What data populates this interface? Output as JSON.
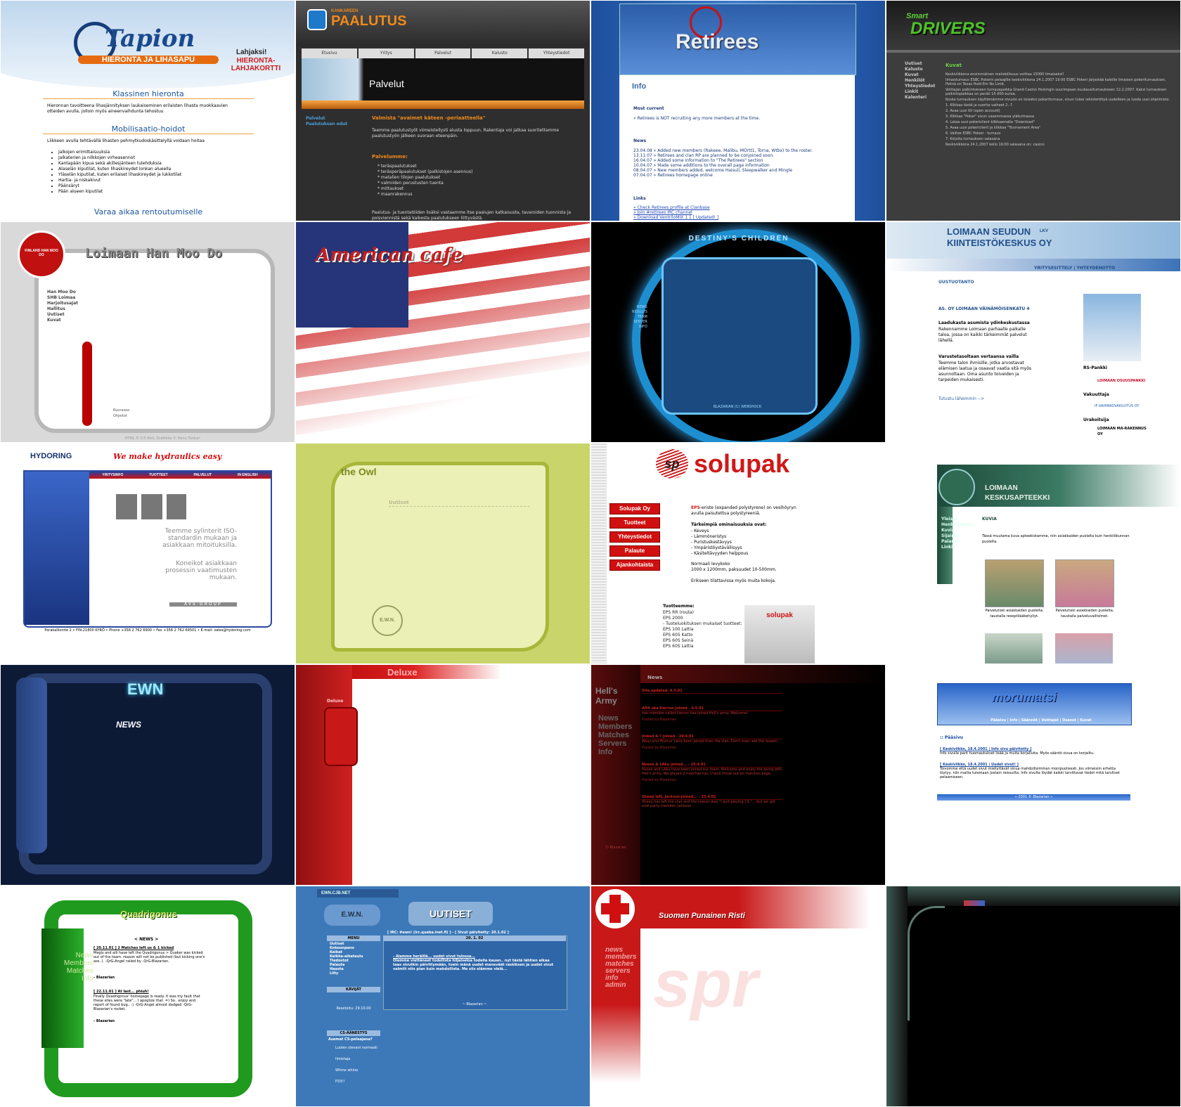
{
  "tiles": [
    {
      "logo": "Tapion",
      "tagline": "HIERONTA JA LIHASAPU",
      "gift": "Lahjaksi!",
      "gift_card": "HIERONTA-LAHJAKORTTI",
      "heading1": "Klassinen hieronta",
      "text1": "Hieronnan tavoitteena lihasjännityksen laukaiseminen erilaisten lihasta muokkaavien otteiden avulla, jolloin myös aineenvaihdunta tehostuu",
      "heading2": "Mobilisaatio-hoidot",
      "text2": "Liikkeen avulla tehtävällä lihasten pehmytkudoskäsittelyllä voidaan hoitaa",
      "items": [
        "Jalkojen erimittaisuuksia",
        "Jalkaterien ja nilkkojen virheasennot",
        "Kantapään kipua sekä akillesjänteen tulehduksia",
        "Alaselän kiputilat, kuten lihaskireydet lonkan alueella",
        "Yläselän kiputilat, kuten erilaiset lihaskireydet ja lukkotilat",
        "Hartia- ja niskakivut",
        "Päänsäryt",
        "Pään alueen kiputilat"
      ],
      "heading3": "Varaa aikaa rentoutumiselle"
    },
    {
      "logo_small": "KANKAREEN",
      "logo": "PAALUTUS",
      "nav": [
        "Etusivu",
        "Yritys",
        "Palvelut",
        "Kalusto",
        "Yhteystiedot"
      ],
      "banner": "Palvelut",
      "side": [
        "Palvelut",
        "Paalutuksen edut"
      ],
      "heading": "Valmista \"avaimet käteen -periaatteella\"",
      "text1": "Teemme paalutustyöt viimeistellysti alusta loppuun. Rakentaja voi jatkaa suoritettamme paalutustyön jälkeen suoraan eteenpäin.",
      "heading2": "Palvelumme:",
      "items": [
        "* teräspaalutukset",
        "* teräsperäpaalutukset (palkistojen asennus)",
        "* matalien tilojen paalutukset",
        "* valmiiden perustusten tuenta",
        "* mittaukset",
        "* maanrakennus"
      ],
      "text2": "Paalutus- ja tuentatöiden lisäksi vastaamme itse paalujen katkaisusta, tavaroiden tuonnista ja poisviennistä sekä kaikesta paalutukseen liittyvästä."
    },
    {
      "logo": "Retirees",
      "heading": "Info",
      "current_title": "Most current",
      "current": "» Retirees is NOT recruiting any more members at the time.",
      "news_title": "News",
      "news": [
        "23.04.08 » Added new members (Rakeee, Malibu, MOrtt1, Torna, Wtbx) to the roster.",
        "13.11.07 » Retirees and clan RP are planned to be conjoined soon.",
        "16.04.07 » Added some information to \"The Retirees\" section",
        "10.04.07 » Made some additions to the overall page information",
        "08.04.07 » New members added, welcome Haisuli, Sleepwalker and Mingle",
        "07.04.07 » Retirees homepage online"
      ],
      "links_title": "Links",
      "links": [
        "» Check Retirees profile at Clanbase",
        "» Join #retirees IRC channel",
        "» Download VentriloMIX 1.1 [ Updated! ]"
      ]
    },
    {
      "logo_small": "Smart",
      "logo": "DRIVERS",
      "nav": [
        "Uutiset",
        "Kalusto",
        "Kuvat",
        "Henkilöt",
        "Yhteystiedot",
        "Linkit",
        "Kalenteri"
      ],
      "heading": "Kuvat",
      "paragraphs": [
        "Keskiviikkona ensimmäinen mahdollisuus voittaa 15000 ilmaiseksi!",
        "Ilmaisturnaus ESBC Pokerin pelaajille keskiviikkona 24.1.2007 19:00 ESBC Pokeri järjestää kaikille ilmaisen pokeriturnauksen. Pelinä on Texas Hold Em No Limit.",
        "Voittajan palkintoineen turnauspaikka Grand Casino Helsingin suurimpaan kuukausiturnaukseen 12.2.2007. Kaksi turnauksen palkintopaikkaa on peräti 15 000 euroa.",
        "Koska turnauksen käyttämämme sivusto on toiseksi pokeriturnaus, sinun tulee rekisteröityä uudelleen ja luoda uusi ohjelmisto.",
        "1. Klikkaa tästä ja suorita vaiheet 2.-7.",
        "2. Avaa uusi tili (open account)",
        "3. Klikkaa \"Poker\" sivun vasemmassa yläkulmassa",
        "4. Lataa uusi pokericlient klikkaamalla \"Download\"",
        "5. Avaa uusi pokericlient ja klikkaa \"Tournament Area\"",
        "6. Valitse ESBC Pokeri - turnaus",
        "7. Kirjoita turnauksen salasana",
        "Keskiviikkona 24.1.2007 kello 19:00 salasana on: casino"
      ]
    },
    {
      "title": "Loimaan Han Moo Do",
      "emblem": "FINLAND HAN MOO DO",
      "nav": [
        "Han Moo Do",
        "SHB Loimaa",
        "Harjoitusajat",
        "Hallitus",
        "Uutiset",
        "Kuvat"
      ],
      "credits": [
        "Ruorasoo",
        "Ohjeitot"
      ],
      "footer": "HTML © V-P Ahti, Grafiikka © Hanu Tunturi"
    },
    {
      "title": "American cafe"
    },
    {
      "title": "DESTINY'S CHILDREN",
      "nav": [
        "NEWS",
        "RESULTS",
        "TEAM",
        "SERVER",
        "INFO"
      ],
      "footer": "BLAZARIAN (C) WEBSHOCK"
    },
    {
      "logo1": "LOIMAAN SEUDUN",
      "logo_lkv": "LKV",
      "logo2": "KIINTEISTÖKESKUS OY",
      "nav": "YRITYSESITTELY | YHTEYDENOTTO",
      "section": "UUSTUOTANTO",
      "heading": "AS. OY LOIMAAN VÄINÄMÖISENKATU 4",
      "sub1": "Laadukasta asumista ydinkeskustassa",
      "text1": "Rakennamme Loimaan parhaalle paikalle taloa, jossa on kaikki tärkeimmät palvelut lähellä.",
      "sub2": "Varustetasoltaan vertaansa vailla",
      "text2": "Teemme talon ihmisille, jotka arvostavat elämisen laatua ja osaavat vaatia sitä myös asunnoltaan. Oma asunto toiveiden ja tarpeiden mukaisesti.",
      "more": "Tutustu lähemmin -->",
      "bank_title": "RS-Pankki",
      "bank": "LOIMAAN OSUUSPANKKI",
      "insurer_title": "Vakuuttaja",
      "insurer": "IF-VAHINKOVAKUUTUS OY",
      "builder_title": "Urakoitsija",
      "builder": "LOIMAAN MA-RAKENNUS OY"
    },
    {
      "logo": "HYDORING",
      "slogan": "We make hydraulics easy",
      "nav": [
        "YRITYSINFO",
        "TUOTTEET",
        "PALVELUT",
        "IN ENGLISH"
      ],
      "text1": "Teemme sylinterit ISO-standardin mukaan ja asiakkaan mitoituksilla.",
      "text2": "Koneikot asiakkaan prosessin vaatimusten mukaan.",
      "group": "AVS-GROUP",
      "footer": "Porakalliontie 2 • FIN-21800 KYRÖ • Phone +358 2 762 6900 • Fax +358 2 762 69501 • E-mail: sales@hydoring.com"
    },
    {
      "logo": "the Owl",
      "heading": "Uutiset",
      "stamp": "E.W.N."
    },
    {
      "logo_mark": "sp",
      "logo": "solupak",
      "nav": [
        "Solupak Oy",
        "Tuotteet",
        "Yhteystiedot",
        "Palaute",
        "Ajankohtaista"
      ],
      "eps": "EPS",
      "intro": "-eriste (expanded polystyrene) on vesihöyryn avulla paisutettua polystyreeniä.",
      "props_title": "Tärkeimpiä ominaisuuksia ovat:",
      "props": [
        "- Keveys",
        "- Lämmöneristys",
        "- Puristuskestävyys",
        "- Ympäristöystävällisyys",
        "- Käsiteltävyyden helppous"
      ],
      "size1": "Normaali levykoko",
      "size2": "1000 x 1200mm, paksuudet 10-500mm.",
      "size3": "Erikseen tilattavissa myös muita kokoja.",
      "products_title": "Tuotteemme:",
      "products": [
        "EPS RR (routa)",
        "EPS 2000",
        "- Tuoteluokituksen mukaiset tuotteet:",
        "EPS 100 Lattia",
        "EPS 60S Katto",
        "EPS 60S Seinä",
        "EPS 60S Lattia"
      ],
      "box": "solupak"
    },
    {
      "logo1": "LOIMAAN",
      "logo2": "KESKUSAPTEEKKI",
      "nav": [
        "Yleistä",
        "Henkilökunta",
        "Kuvia",
        "Sijainti",
        "Palaute",
        "Linkit"
      ],
      "heading": "KUVIA",
      "text": "Tässä muutama kuva apteekistamme, niin asiakkaiden puolelta kuin henkilökunnan puolelta.",
      "captions": [
        "Palvelutiski asiakkaiden puolelta, taustalla reseptilääkehyllyt.",
        "Palvelutiski asiakkaiden puolelta, taustalla palveluvalitsimet."
      ]
    },
    {
      "logo": "EWN",
      "heading": "NEWS"
    },
    {
      "title": "Deluxe",
      "button": "Deluxe"
    },
    {
      "logo": "Hell's Army",
      "nav": [
        "News",
        "Members",
        "Matches",
        "Servers",
        "Info"
      ],
      "heading": "News",
      "posts": [
        {
          "title": "Site updated. 4.5.01",
          "text": "",
          "by": ""
        },
        {
          "title": "Afth aka Iiwrron joined - 4.5.01",
          "text": "two member called Iiwrron has joined Hell's army. Welcome!",
          "by": "Posted by Blazarian"
        },
        {
          "title": "Jinked & ? joined - 29.4.01",
          "text": "Woss and Hiumur have been joined from the clan. Don't even ask the reason.",
          "by": "Posted by Blazarian"
        },
        {
          "title": "Noose & LAku joined... - 25.4.01",
          "text": "Noose and LAku have been joined our team. Welcome and enjoy the being with Hell's army. We played 2 matches too. Check those out on matches page.",
          "by": "Posted by Blazarian"
        },
        {
          "title": "Sheep left, Jackson joined... - 23.4.01",
          "text": "Sheep has left the clan and the reason was \"i quit playing CS.\"... but we got new party-member, Jackson.",
          "by": ""
        }
      ],
      "footer": "© Blazarian"
    },
    {
      "logo": "morumatsi",
      "nav": "Pääsivu | Info | Säännöt | Voittajat | Osanot | Kuvat",
      "section": ":: Pääsivu",
      "post1_title": "[ Keskiviikko, 18.4.2001 | Info sivu päivitetty ]",
      "post1": "Info sivulle pant huomautukset lisää ja muita korjailuita. Myös sääntö sivua on korjailtu.",
      "post2_title": "[ Keskiviikko, 18.4.2001 | Uudet sivut! ]",
      "post2": "Toivomme että uudet sivut miellyttävät sinua mahdollisimman monipuolisesti. Jos viimeisiin erhetta löytyy, niin mailia tulemaan jostain reissuilta. Info sivulta löydät kaikki tarvittavat tiedot mitä tarvitset pelaamiseen.",
      "footer": "« 2001 © Blazarian »"
    },
    {
      "logo": "Quadrigonus",
      "nav": [
        "News",
        "Members",
        "Matches",
        "Info"
      ],
      "heading": "< NEWS >",
      "post1_title": "[ 20.11.01 ] 2 Matches left us & 1 kicked",
      "post1": "Megis and alli have left the Quadrigonus > Quaker was kicked out of the team. reason will not be published (but kicking one's ass..). -QrG-Angel railed by -QrG-Blazarian.",
      "post1_by": "- Blazarian",
      "post2_title": "[ 22.11.01 ] At last... phiuh!",
      "post2": "Finally Quadrigonus' homepage is ready. It was my fault that these sites were \"late\"... I apoglize that. =) So.. enjoy and report of found bug.. :) -QrG-Angel almost dodged -QrG-Blazarian's rocket.",
      "post2_by": "- Blazarian"
    },
    {
      "url": "EWN.CJB.NET",
      "logo": "E.W.N.",
      "heading": "UUTISET",
      "irc": "[ IRC: #ewn! (irc.quaba.inet.fi) ] - [ Sivut päivitetty: 20.1.02 ]",
      "date": "20. 1. 02",
      "post_title": "- Alamme heräillä... uudet sivut tulossa...",
      "post": "Olemme viettäneet todellista hiljaiseloa todella kauan.. nyt tästä lähtien aikaa taas sivutkin päivittymään, toein mänä uudet meneväät raskiksen ja uudet sivut valmiit niin pian kuin mahdollista. Me siis elämme vielä...",
      "by": "~ Blazarian ~",
      "menu_title": "MENU",
      "menu": [
        "Uutiset",
        "Kokoonpano",
        "Keikat",
        "Keikka-aikataulu",
        "Tiedostot",
        "Palaute",
        "Haasta",
        "Liity"
      ],
      "visitors_title": "KÄVIJÄT",
      "visitors": "Resetoitu: 29.10.00",
      "poll_title": "CS-ÄÄNESTYS",
      "poll_question": "Asemat CS-pelaajana?",
      "poll": [
        "Luolen olevani normaali",
        "Ilmistaja",
        "Whine whine",
        "P33!!"
      ]
    },
    {
      "title": "Suomen Punainen Risti",
      "nav": [
        "news",
        "members",
        "matches",
        "servers",
        "info",
        "admin"
      ],
      "watermark": "spr"
    },
    {}
  ]
}
